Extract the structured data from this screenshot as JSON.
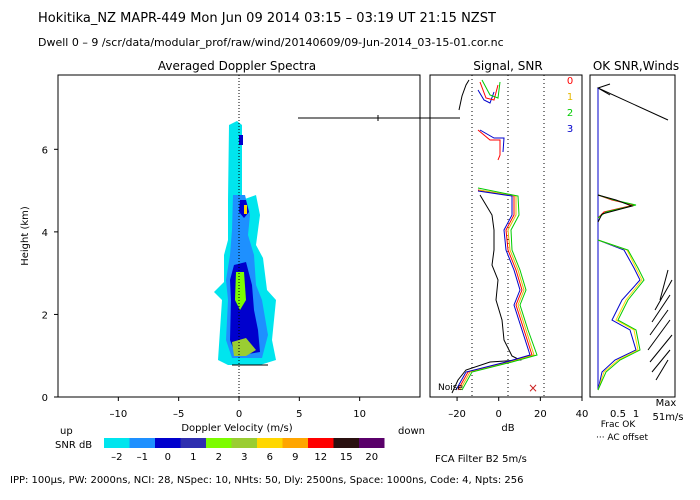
{
  "header": {
    "title": "Hokitika_NZ   MAPR-449   Mon Jun 09 2014 03:15 – 03:19 UT 21:15 NZST",
    "subtitle": "Dwell   0 –   9    /scr/data/modular_prof/raw/wind/20140609/09-Jun-2014_03-15-01.cor.nc"
  },
  "footer": {
    "params": "IPP: 100µs,  PW: 2000ns,  NCI: 28,  NSpec: 10, NHts: 50,  Dly: 2500ns,  Space: 1000ns,  Code: 4,  Npts: 256",
    "filter": "FCA Filter B2   5m/s"
  },
  "colorbar": {
    "label_up": "up",
    "label_down": "down",
    "label_snr": "SNR dB",
    "colors": [
      "#00e5ee",
      "#1e90ff",
      "#0000cd",
      "#2e2eb0",
      "#7cfc00",
      "#9acd32",
      "#ffd700",
      "#ffa500",
      "#ff0000",
      "#2a1010",
      "#5a006a"
    ],
    "ticks": [
      "–2",
      "–1",
      "0",
      "1",
      "2",
      "3",
      "6",
      "9",
      "12",
      "15",
      "20"
    ]
  },
  "chart_data": [
    {
      "type": "heatmap",
      "title": "Averaged Doppler Spectra",
      "xlabel": "Doppler Velocity (m/s)",
      "ylabel": "Height (km)",
      "xlim": [
        -15,
        15
      ],
      "ylim": [
        0,
        7.8
      ],
      "xticks": [
        -10,
        -5,
        0,
        5,
        10
      ],
      "yticks": [
        0,
        2,
        4,
        6
      ],
      "xtick_labels": [
        "–10",
        "–5",
        "0",
        "5",
        "10"
      ],
      "ytick_labels": [
        "0",
        "2",
        "4",
        "6"
      ],
      "annotation": "spectral echo centred near 0 m/s between 0.9 and 6.6 km; strongest SNR near 1.2 km and 2.7 km"
    },
    {
      "type": "line",
      "title": "Signal, SNR",
      "xlabel": "dB",
      "xlim": [
        -33,
        40
      ],
      "xticks": [
        -20,
        0,
        20,
        40
      ],
      "xtick_labels": [
        "–20",
        "0",
        "20",
        "40"
      ],
      "noise_label": "Noise",
      "series": [
        {
          "name": "0",
          "color": "#ff0000"
        },
        {
          "name": "1",
          "color": "#e6b800"
        },
        {
          "name": "2",
          "color": "#00cc00"
        },
        {
          "name": "3",
          "color": "#0000cc"
        }
      ]
    },
    {
      "type": "line",
      "title": "OK SNR,Winds",
      "xticks": [
        0.5,
        1
      ],
      "xtick_labels": [
        "0.5",
        "1"
      ],
      "legend": [
        "Frac OK",
        "··· AC offset"
      ],
      "max_label": "Max",
      "max_value": "51m/s"
    }
  ]
}
